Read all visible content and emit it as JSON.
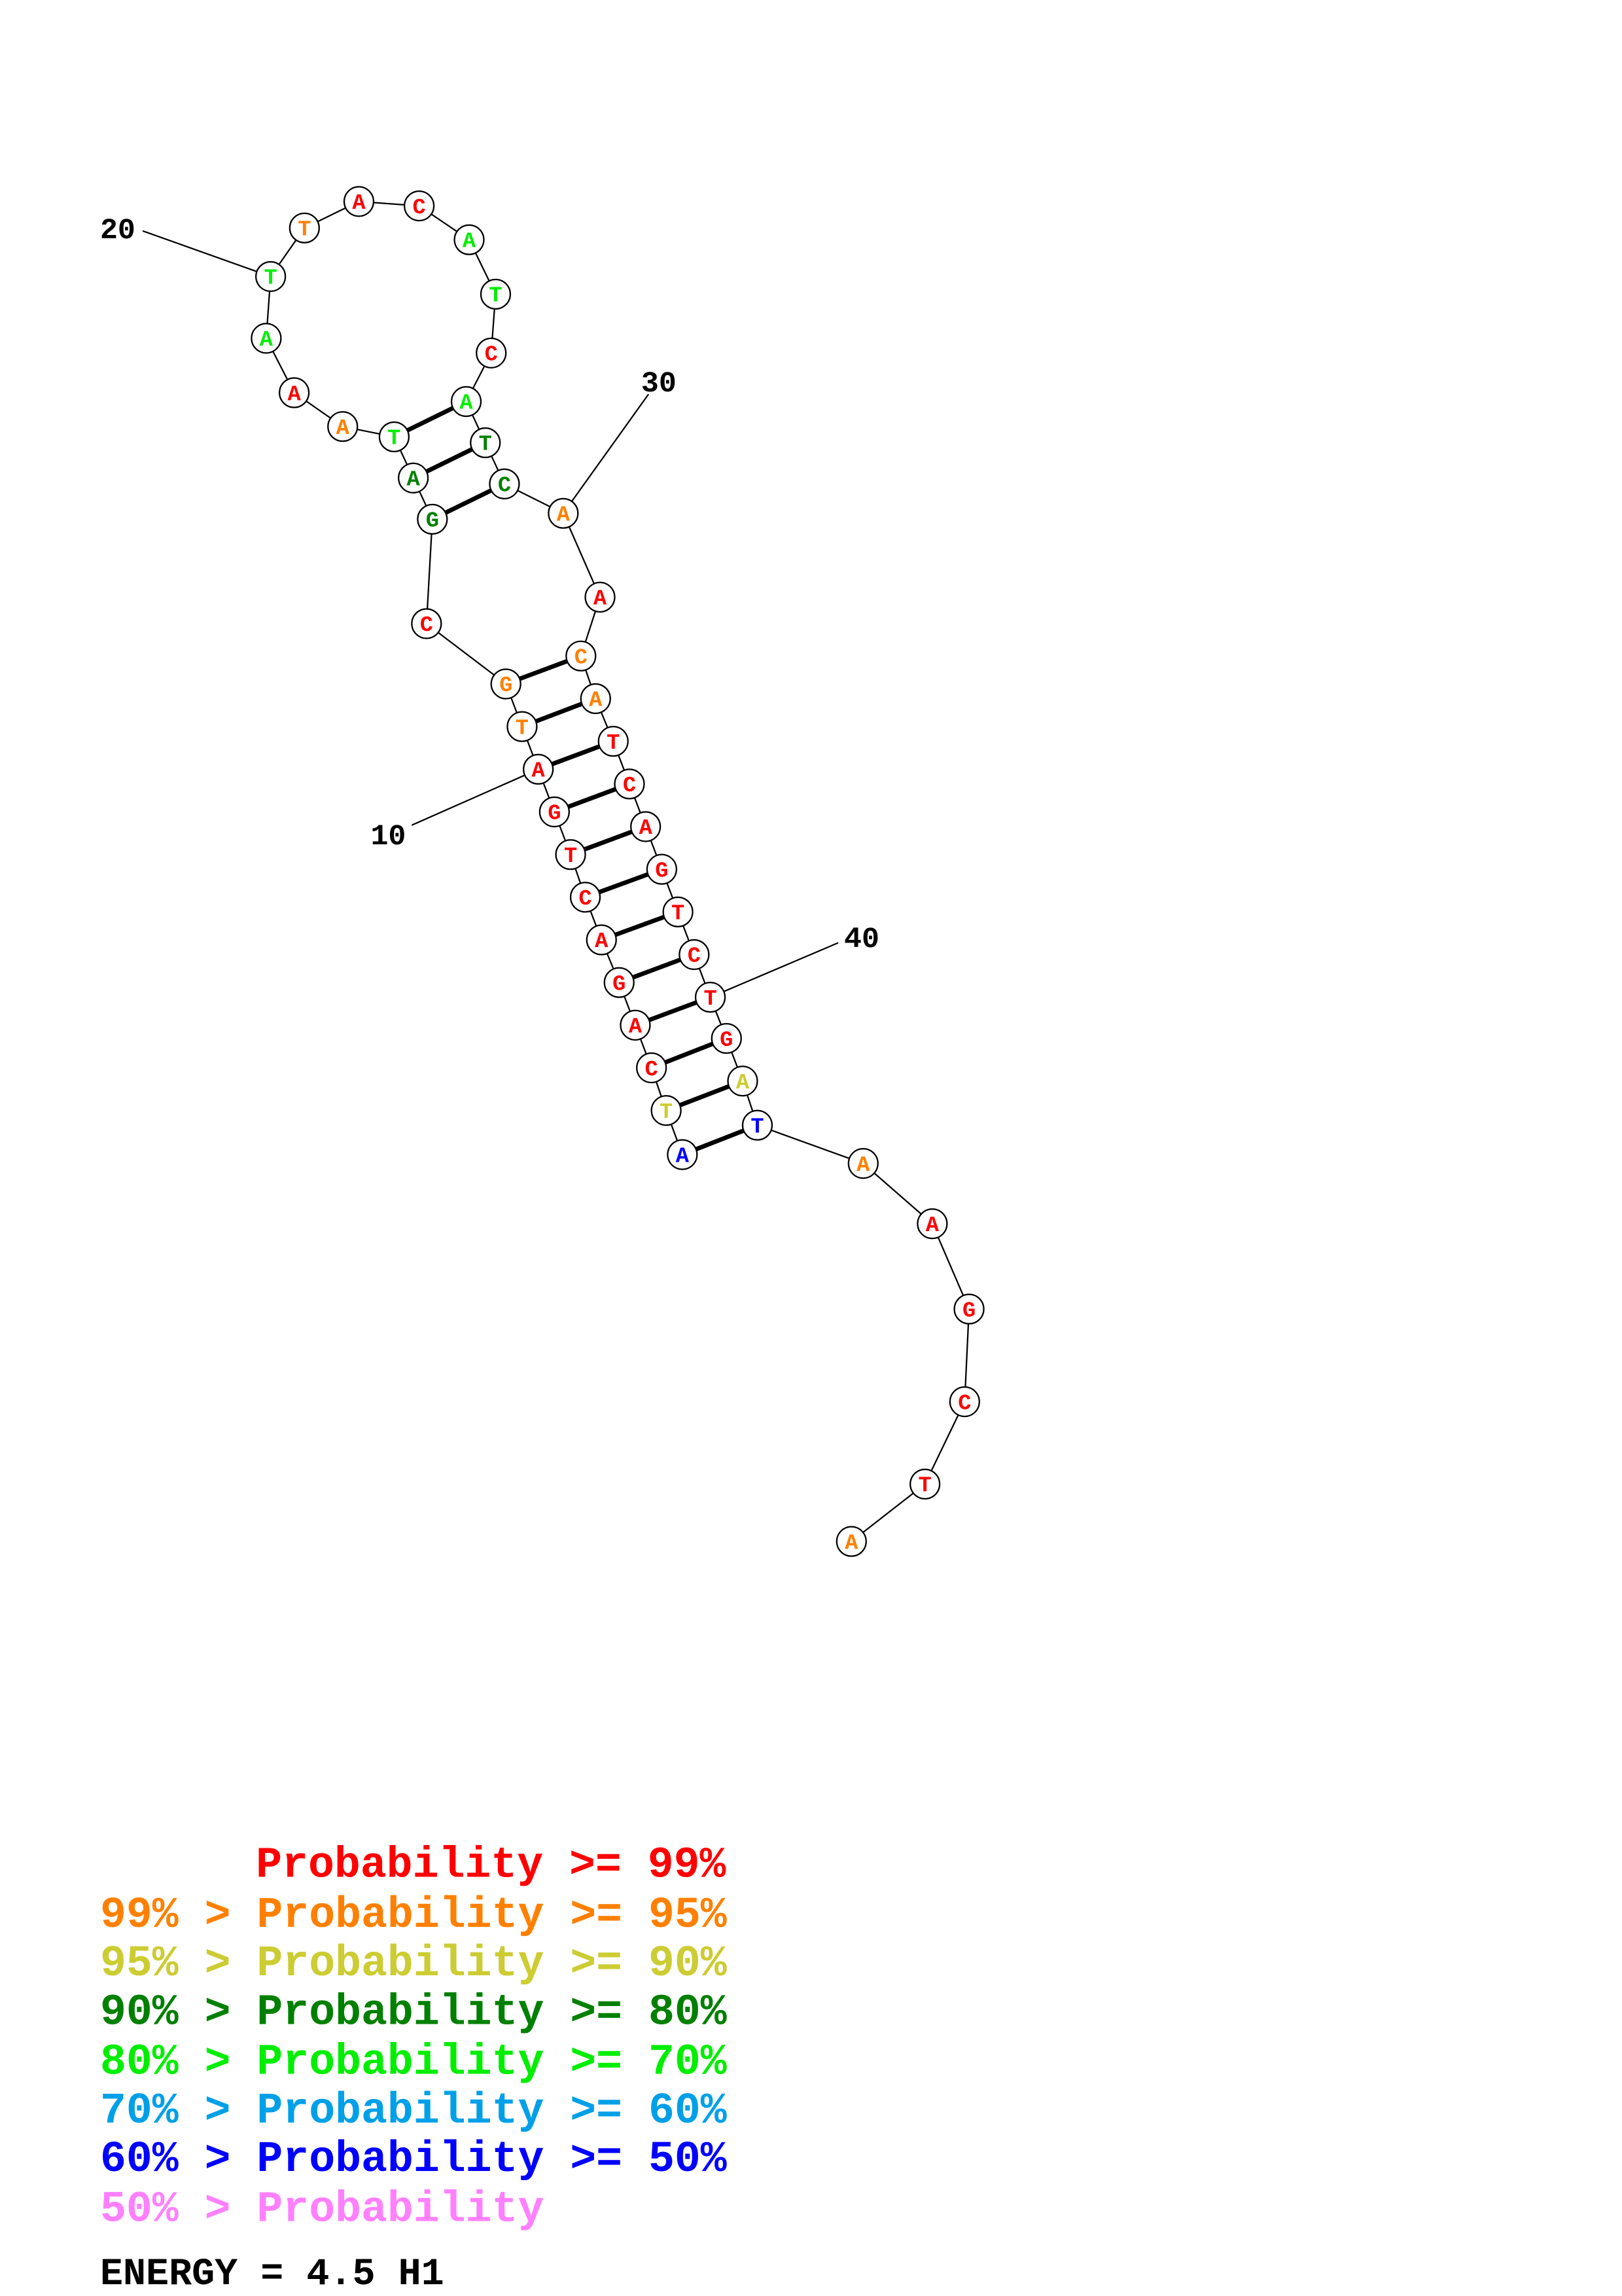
{
  "sequence": [
    {
      "letter": "A",
      "color": "#0000ff"
    },
    {
      "letter": "T",
      "color": "#cccc33"
    },
    {
      "letter": "C",
      "color": "#ff0000"
    },
    {
      "letter": "A",
      "color": "#ff0000"
    },
    {
      "letter": "G",
      "color": "#ff0000"
    },
    {
      "letter": "A",
      "color": "#ff0000"
    },
    {
      "letter": "C",
      "color": "#ff0000"
    },
    {
      "letter": "T",
      "color": "#ff0000"
    },
    {
      "letter": "G",
      "color": "#ff0000"
    },
    {
      "letter": "A",
      "color": "#ff0000"
    },
    {
      "letter": "T",
      "color": "#ff8000"
    },
    {
      "letter": "G",
      "color": "#ff8000"
    },
    {
      "letter": "C",
      "color": "#ff0000"
    },
    {
      "letter": "G",
      "color": "#008000"
    },
    {
      "letter": "A",
      "color": "#008000"
    },
    {
      "letter": "T",
      "color": "#00ee00"
    },
    {
      "letter": "A",
      "color": "#ff8000"
    },
    {
      "letter": "A",
      "color": "#ff0000"
    },
    {
      "letter": "A",
      "color": "#00ee00"
    },
    {
      "letter": "T",
      "color": "#00ee00"
    },
    {
      "letter": "T",
      "color": "#ff8000"
    },
    {
      "letter": "A",
      "color": "#ff0000"
    },
    {
      "letter": "C",
      "color": "#ff0000"
    },
    {
      "letter": "A",
      "color": "#00ee00"
    },
    {
      "letter": "T",
      "color": "#00ee00"
    },
    {
      "letter": "C",
      "color": "#ff0000"
    },
    {
      "letter": "A",
      "color": "#00ee00"
    },
    {
      "letter": "T",
      "color": "#008000"
    },
    {
      "letter": "C",
      "color": "#008000"
    },
    {
      "letter": "A",
      "color": "#ff8000"
    },
    {
      "letter": "A",
      "color": "#ff0000"
    },
    {
      "letter": "C",
      "color": "#ff8000"
    },
    {
      "letter": "A",
      "color": "#ff8000"
    },
    {
      "letter": "T",
      "color": "#ff0000"
    },
    {
      "letter": "C",
      "color": "#ff0000"
    },
    {
      "letter": "A",
      "color": "#ff0000"
    },
    {
      "letter": "G",
      "color": "#ff0000"
    },
    {
      "letter": "T",
      "color": "#ff0000"
    },
    {
      "letter": "C",
      "color": "#ff0000"
    },
    {
      "letter": "T",
      "color": "#ff0000"
    },
    {
      "letter": "G",
      "color": "#ff0000"
    },
    {
      "letter": "A",
      "color": "#cccc33"
    },
    {
      "letter": "T",
      "color": "#0000ff"
    },
    {
      "letter": "A",
      "color": "#ff8000"
    },
    {
      "letter": "A",
      "color": "#ff0000"
    },
    {
      "letter": "G",
      "color": "#ff0000"
    },
    {
      "letter": "C",
      "color": "#ff0000"
    },
    {
      "letter": "T",
      "color": "#ff0000"
    },
    {
      "letter": "A",
      "color": "#ff8000"
    }
  ],
  "position_labels": [
    "10",
    "20",
    "30",
    "40"
  ],
  "legend": [
    {
      "text": "Probability >= 99%",
      "color": "#ff0000"
    },
    {
      "text": "99% > Probability >= 95%",
      "color": "#ff8000"
    },
    {
      "text": "95% > Probability >= 90%",
      "color": "#cccc33"
    },
    {
      "text": "90% > Probability >= 80%",
      "color": "#008000"
    },
    {
      "text": "80% > Probability >= 70%",
      "color": "#00ee00"
    },
    {
      "text": "70% > Probability >= 60%",
      "color": "#00a0e8"
    },
    {
      "text": "60% > Probability >= 50%",
      "color": "#0000ff"
    },
    {
      "text": "50% > Probability",
      "color": "#ff80ff"
    }
  ],
  "energy": "ENERGY = 4.5  H1"
}
